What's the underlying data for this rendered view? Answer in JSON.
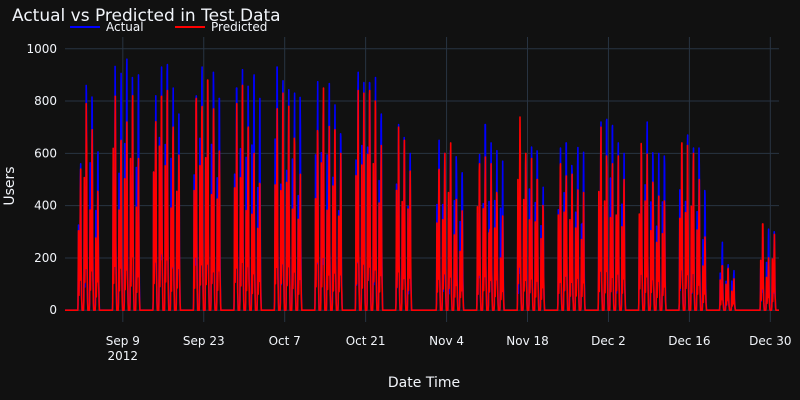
{
  "chart_data": {
    "type": "line",
    "title": "Actual vs Predicted in Test Data",
    "xlabel": "Date Time",
    "ylabel": "Users",
    "xlim": [
      "2012-08-30",
      "2012-12-31T12:00"
    ],
    "ylim": [
      -45,
      1045
    ],
    "legend_position": "top-left",
    "background": "#111111",
    "grid_color": "#283442",
    "x_ticks": [
      {
        "date": "2012-09-09",
        "label": "Sep 9",
        "sublabel": "2012"
      },
      {
        "date": "2012-09-23",
        "label": "Sep 23"
      },
      {
        "date": "2012-10-07",
        "label": "Oct 7"
      },
      {
        "date": "2012-10-21",
        "label": "Oct 21"
      },
      {
        "date": "2012-11-04",
        "label": "Nov 4"
      },
      {
        "date": "2012-11-18",
        "label": "Nov 18"
      },
      {
        "date": "2012-12-02",
        "label": "Dec 2"
      },
      {
        "date": "2012-12-16",
        "label": "Dec 16"
      },
      {
        "date": "2012-12-30",
        "label": "Dec 30"
      }
    ],
    "y_ticks": [
      0,
      200,
      400,
      600,
      800,
      1000
    ],
    "series": [
      {
        "name": "Actual",
        "color": "#0000ff",
        "points": [
          [
            "2012-09-01",
            560
          ],
          [
            "2012-09-02",
            860
          ],
          [
            "2012-09-03",
            830
          ],
          [
            "2012-09-04",
            700
          ],
          [
            "2012-09-07",
            960
          ],
          [
            "2012-09-08",
            970
          ],
          [
            "2012-09-09",
            960
          ],
          [
            "2012-09-10",
            890
          ],
          [
            "2012-09-11",
            900
          ],
          [
            "2012-09-14",
            820
          ],
          [
            "2012-09-15",
            930
          ],
          [
            "2012-09-16",
            980
          ],
          [
            "2012-09-17",
            850
          ],
          [
            "2012-09-18",
            750
          ],
          [
            "2012-09-21",
            900
          ],
          [
            "2012-09-22",
            930
          ],
          [
            "2012-09-23",
            950
          ],
          [
            "2012-09-24",
            910
          ],
          [
            "2012-09-25",
            810
          ],
          [
            "2012-09-28",
            850
          ],
          [
            "2012-09-29",
            920
          ],
          [
            "2012-09-30",
            910
          ],
          [
            "2012-10-01",
            900
          ],
          [
            "2012-10-02",
            810
          ],
          [
            "2012-10-05",
            930
          ],
          [
            "2012-10-06",
            910
          ],
          [
            "2012-10-07",
            850
          ],
          [
            "2012-10-08",
            830
          ],
          [
            "2012-10-09",
            820
          ],
          [
            "2012-10-12",
            880
          ],
          [
            "2012-10-13",
            920
          ],
          [
            "2012-10-14",
            890
          ],
          [
            "2012-10-15",
            890
          ],
          [
            "2012-10-16",
            710
          ],
          [
            "2012-10-19",
            910
          ],
          [
            "2012-10-20",
            940
          ],
          [
            "2012-10-21",
            960
          ],
          [
            "2012-10-22",
            890
          ],
          [
            "2012-10-23",
            750
          ],
          [
            "2012-10-26",
            710
          ],
          [
            "2012-10-27",
            700
          ],
          [
            "2012-10-28",
            600
          ],
          [
            "2012-11-02",
            650
          ],
          [
            "2012-11-03",
            600
          ],
          [
            "2012-11-04",
            610
          ],
          [
            "2012-11-05",
            600
          ],
          [
            "2012-11-06",
            590
          ],
          [
            "2012-11-09",
            600
          ],
          [
            "2012-11-10",
            710
          ],
          [
            "2012-11-11",
            640
          ],
          [
            "2012-11-12",
            610
          ],
          [
            "2012-11-13",
            570
          ],
          [
            "2012-11-16",
            610
          ],
          [
            "2012-11-17",
            690
          ],
          [
            "2012-11-18",
            650
          ],
          [
            "2012-11-19",
            620
          ],
          [
            "2012-11-20",
            470
          ],
          [
            "2012-11-23",
            620
          ],
          [
            "2012-11-24",
            640
          ],
          [
            "2012-11-25",
            560
          ],
          [
            "2012-11-26",
            680
          ],
          [
            "2012-11-27",
            620
          ],
          [
            "2012-11-30",
            720
          ],
          [
            "2012-12-01",
            730
          ],
          [
            "2012-12-02",
            730
          ],
          [
            "2012-12-03",
            640
          ],
          [
            "2012-12-04",
            600
          ],
          [
            "2012-12-07",
            650
          ],
          [
            "2012-12-08",
            720
          ],
          [
            "2012-12-09",
            610
          ],
          [
            "2012-12-10",
            600
          ],
          [
            "2012-12-11",
            590
          ],
          [
            "2012-12-14",
            680
          ],
          [
            "2012-12-15",
            670
          ],
          [
            "2012-12-16",
            620
          ],
          [
            "2012-12-17",
            620
          ],
          [
            "2012-12-18",
            500
          ],
          [
            "2012-12-21",
            260
          ],
          [
            "2012-12-22",
            180
          ],
          [
            "2012-12-23",
            160
          ],
          [
            "2012-12-28",
            280
          ],
          [
            "2012-12-29",
            310
          ],
          [
            "2012-12-30",
            300
          ]
        ]
      },
      {
        "name": "Predicted",
        "color": "#ff0000",
        "points": [
          [
            "2012-09-01",
            540
          ],
          [
            "2012-09-02",
            790
          ],
          [
            "2012-09-03",
            700
          ],
          [
            "2012-09-04",
            480
          ],
          [
            "2012-09-07",
            870
          ],
          [
            "2012-09-08",
            680
          ],
          [
            "2012-09-09",
            720
          ],
          [
            "2012-09-10",
            820
          ],
          [
            "2012-09-11",
            580
          ],
          [
            "2012-09-14",
            820
          ],
          [
            "2012-09-15",
            880
          ],
          [
            "2012-09-16",
            840
          ],
          [
            "2012-09-17",
            700
          ],
          [
            "2012-09-18",
            660
          ],
          [
            "2012-09-21",
            810
          ],
          [
            "2012-09-22",
            890
          ],
          [
            "2012-09-23",
            880
          ],
          [
            "2012-09-24",
            770
          ],
          [
            "2012-09-25",
            640
          ],
          [
            "2012-09-28",
            790
          ],
          [
            "2012-09-29",
            860
          ],
          [
            "2012-09-30",
            700
          ],
          [
            "2012-10-01",
            600
          ],
          [
            "2012-10-02",
            500
          ],
          [
            "2012-10-05",
            810
          ],
          [
            "2012-10-06",
            830
          ],
          [
            "2012-10-07",
            780
          ],
          [
            "2012-10-08",
            720
          ],
          [
            "2012-10-09",
            520
          ],
          [
            "2012-10-12",
            790
          ],
          [
            "2012-10-13",
            850
          ],
          [
            "2012-10-14",
            720
          ],
          [
            "2012-10-15",
            690
          ],
          [
            "2012-10-16",
            600
          ],
          [
            "2012-10-19",
            840
          ],
          [
            "2012-10-20",
            830
          ],
          [
            "2012-10-21",
            840
          ],
          [
            "2012-10-22",
            820
          ],
          [
            "2012-10-23",
            630
          ],
          [
            "2012-10-26",
            700
          ],
          [
            "2012-10-27",
            650
          ],
          [
            "2012-10-28",
            570
          ],
          [
            "2012-11-02",
            570
          ],
          [
            "2012-11-03",
            600
          ],
          [
            "2012-11-04",
            640
          ],
          [
            "2012-11-05",
            440
          ],
          [
            "2012-11-06",
            380
          ],
          [
            "2012-11-09",
            560
          ],
          [
            "2012-11-10",
            620
          ],
          [
            "2012-11-11",
            560
          ],
          [
            "2012-11-12",
            500
          ],
          [
            "2012-11-13",
            360
          ],
          [
            "2012-11-16",
            780
          ],
          [
            "2012-11-17",
            600
          ],
          [
            "2012-11-18",
            580
          ],
          [
            "2012-11-19",
            500
          ],
          [
            "2012-11-20",
            400
          ],
          [
            "2012-11-23",
            560
          ],
          [
            "2012-11-24",
            600
          ],
          [
            "2012-11-25",
            520
          ],
          [
            "2012-11-26",
            500
          ],
          [
            "2012-11-27",
            450
          ],
          [
            "2012-11-30",
            700
          ],
          [
            "2012-12-01",
            640
          ],
          [
            "2012-12-02",
            560
          ],
          [
            "2012-12-03",
            590
          ],
          [
            "2012-12-04",
            500
          ],
          [
            "2012-12-07",
            650
          ],
          [
            "2012-12-08",
            620
          ],
          [
            "2012-12-09",
            540
          ],
          [
            "2012-12-10",
            460
          ],
          [
            "2012-12-11",
            420
          ],
          [
            "2012-12-14",
            640
          ],
          [
            "2012-12-15",
            630
          ],
          [
            "2012-12-16",
            600
          ],
          [
            "2012-12-17",
            500
          ],
          [
            "2012-12-18",
            280
          ],
          [
            "2012-12-21",
            170
          ],
          [
            "2012-12-22",
            160
          ],
          [
            "2012-12-23",
            120
          ],
          [
            "2012-12-28",
            330
          ],
          [
            "2012-12-29",
            200
          ],
          [
            "2012-12-30",
            290
          ]
        ]
      }
    ]
  }
}
